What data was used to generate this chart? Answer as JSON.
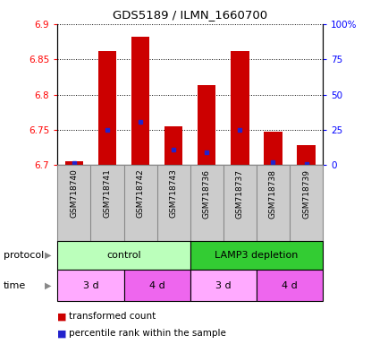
{
  "title": "GDS5189 / ILMN_1660700",
  "samples": [
    "GSM718740",
    "GSM718741",
    "GSM718742",
    "GSM718743",
    "GSM718736",
    "GSM718737",
    "GSM718738",
    "GSM718739"
  ],
  "red_top": [
    6.705,
    6.862,
    6.882,
    6.755,
    6.813,
    6.862,
    6.748,
    6.728
  ],
  "red_bottom": [
    6.7,
    6.7,
    6.7,
    6.7,
    6.7,
    6.7,
    6.7,
    6.7
  ],
  "blue_y": [
    6.703,
    6.75,
    6.762,
    6.722,
    6.718,
    6.75,
    6.704,
    6.702
  ],
  "ylim": [
    6.7,
    6.9
  ],
  "yticks_left": [
    6.7,
    6.75,
    6.8,
    6.85,
    6.9
  ],
  "yticks_right": [
    0,
    25,
    50,
    75,
    100
  ],
  "ytick_labels_right": [
    "0",
    "25",
    "50",
    "75",
    "100%"
  ],
  "bar_width": 0.55,
  "bar_color": "#cc0000",
  "blue_color": "#2222cc",
  "protocol_groups": [
    {
      "label": "control",
      "start": 0,
      "end": 3,
      "color": "#bbffbb"
    },
    {
      "label": "LAMP3 depletion",
      "start": 4,
      "end": 7,
      "color": "#33cc33"
    }
  ],
  "time_groups": [
    {
      "label": "3 d",
      "start": 0,
      "end": 1,
      "color": "#ffaaff"
    },
    {
      "label": "4 d",
      "start": 2,
      "end": 3,
      "color": "#ee66ee"
    },
    {
      "label": "3 d",
      "start": 4,
      "end": 5,
      "color": "#ffaaff"
    },
    {
      "label": "4 d",
      "start": 6,
      "end": 7,
      "color": "#ee66ee"
    }
  ],
  "legend_red": "transformed count",
  "legend_blue": "percentile rank within the sample",
  "protocol_label": "protocol",
  "time_label": "time",
  "xtick_bg_color": "#cccccc",
  "xtick_border_color": "#888888"
}
